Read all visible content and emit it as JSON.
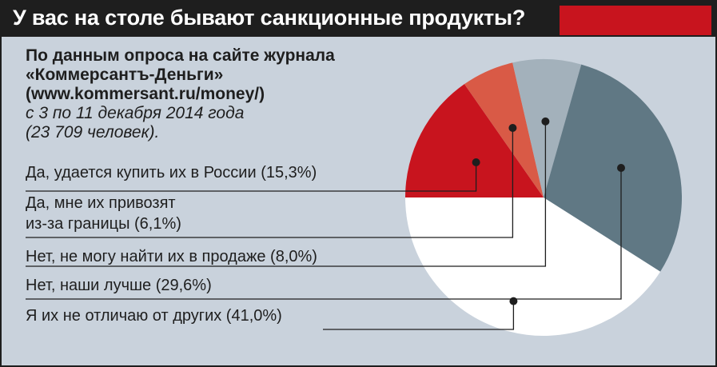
{
  "header": {
    "title": "У вас на столе бывают санкционные продукты?",
    "accent_color": "#c8141e"
  },
  "source": {
    "line1": "По данным опроса на сайте журнала",
    "line2": "«Коммерсантъ-Деньги»",
    "line3": "(www.kommersant.ru/money/)",
    "line4": "с 3 по 11 декабря 2014 года",
    "line5": "(23 709 человек)."
  },
  "chart_data": {
    "type": "pie",
    "title": "У вас на столе бывают санкционные продукты?",
    "slices": [
      {
        "label": "Да, удается купить их в России (15,3%)",
        "lines": [
          "Да, удается купить их в России (15,3%)"
        ],
        "value": 15.3,
        "color": "#c8141e"
      },
      {
        "label": "Да, мне их привозят из-за границы (6,1%)",
        "lines": [
          "Да, мне их привозят",
          "из-за границы (6,1%)"
        ],
        "value": 6.1,
        "color": "#d95a46"
      },
      {
        "label": "Нет, не могу найти их в продаже (8,0%)",
        "lines": [
          "Нет, не могу найти их в продаже (8,0%)"
        ],
        "value": 8.0,
        "color": "#a3b1bb"
      },
      {
        "label": "Нет, наши лучше (29,6%)",
        "lines": [
          "Нет, наши лучше (29,6%)"
        ],
        "value": 29.6,
        "color": "#607884"
      },
      {
        "label": "Я их не отличаю от других (41,0%)",
        "lines": [
          "Я их не отличаю от других (41,0%)"
        ],
        "value": 41.0,
        "color": "#ffffff"
      }
    ],
    "legend_position": "left"
  }
}
